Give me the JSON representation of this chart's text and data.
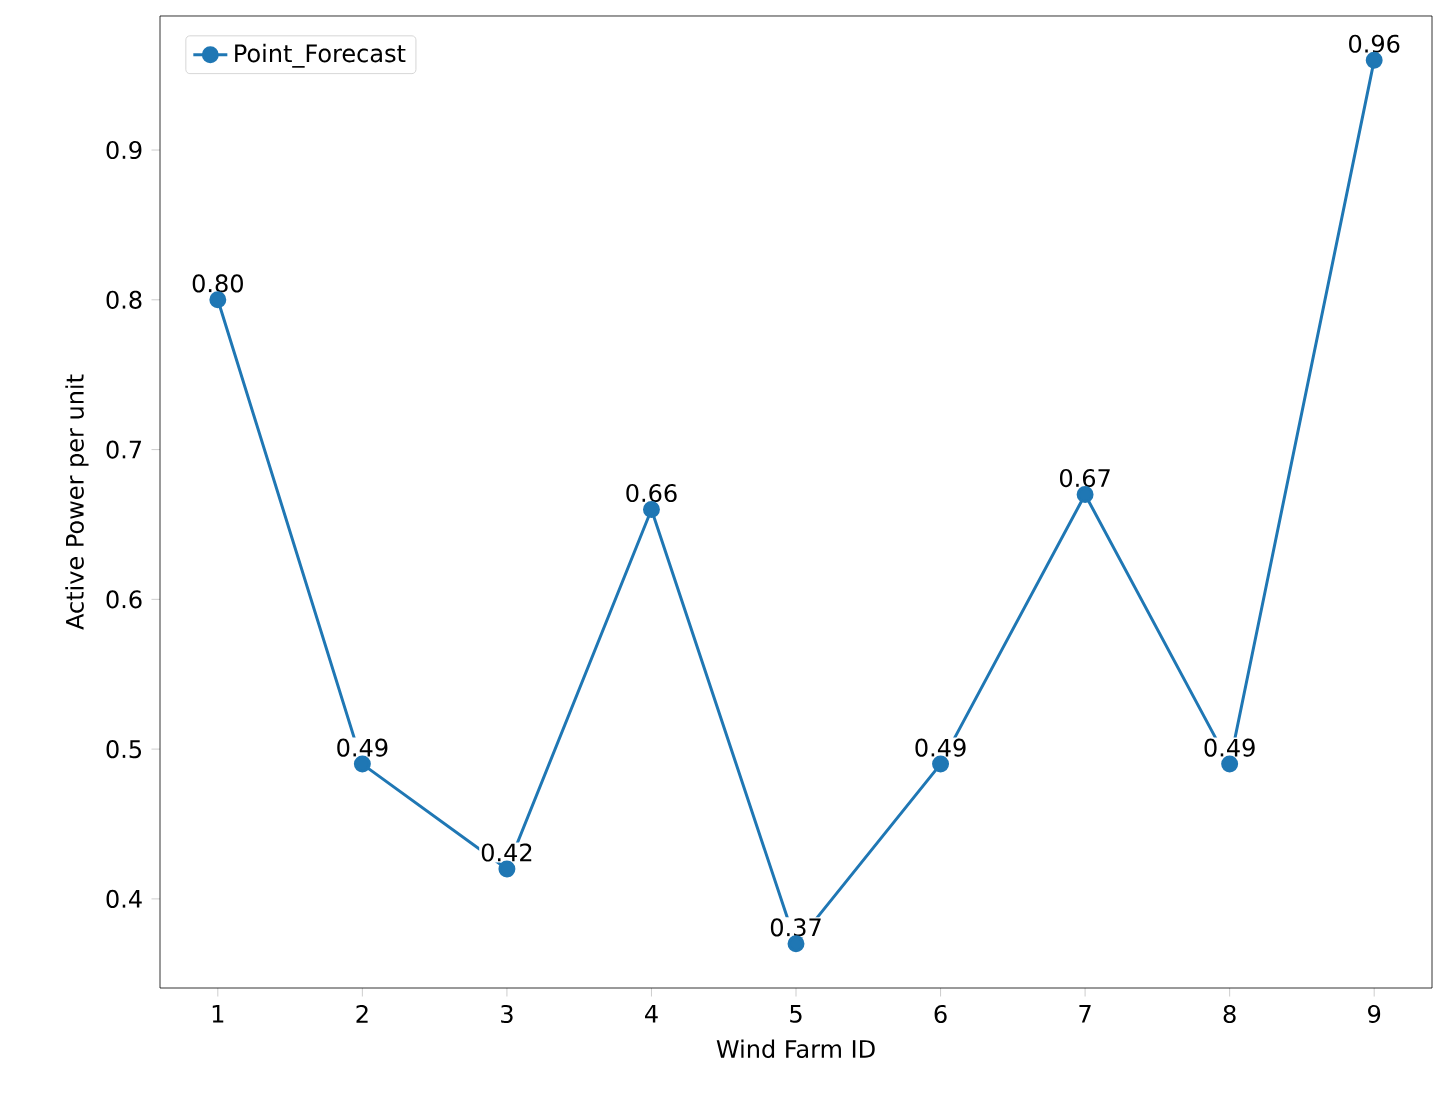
{
  "chart_data": {
    "type": "line",
    "xlabel": "Wind Farm ID",
    "ylabel": "Active Power per unit",
    "x": [
      1,
      2,
      3,
      4,
      5,
      6,
      7,
      8,
      9
    ],
    "series": [
      {
        "name": "Point_Forecast",
        "color": "#1f77b4",
        "values": [
          0.8,
          0.49,
          0.42,
          0.66,
          0.37,
          0.49,
          0.67,
          0.49,
          0.96
        ],
        "value_labels": [
          "0.80",
          "0.49",
          "0.42",
          "0.66",
          "0.37",
          "0.49",
          "0.67",
          "0.49",
          "0.96"
        ]
      }
    ],
    "xlim": [
      0.6,
      9.4
    ],
    "ylim": [
      0.3405,
      0.9895
    ],
    "xticks": [
      1,
      2,
      3,
      4,
      5,
      6,
      7,
      8,
      9
    ],
    "yticks": [
      0.4,
      0.5,
      0.6,
      0.7,
      0.8,
      0.9
    ],
    "marker": "circle",
    "line_style": "solid",
    "legend": "top left",
    "grid": false
  }
}
